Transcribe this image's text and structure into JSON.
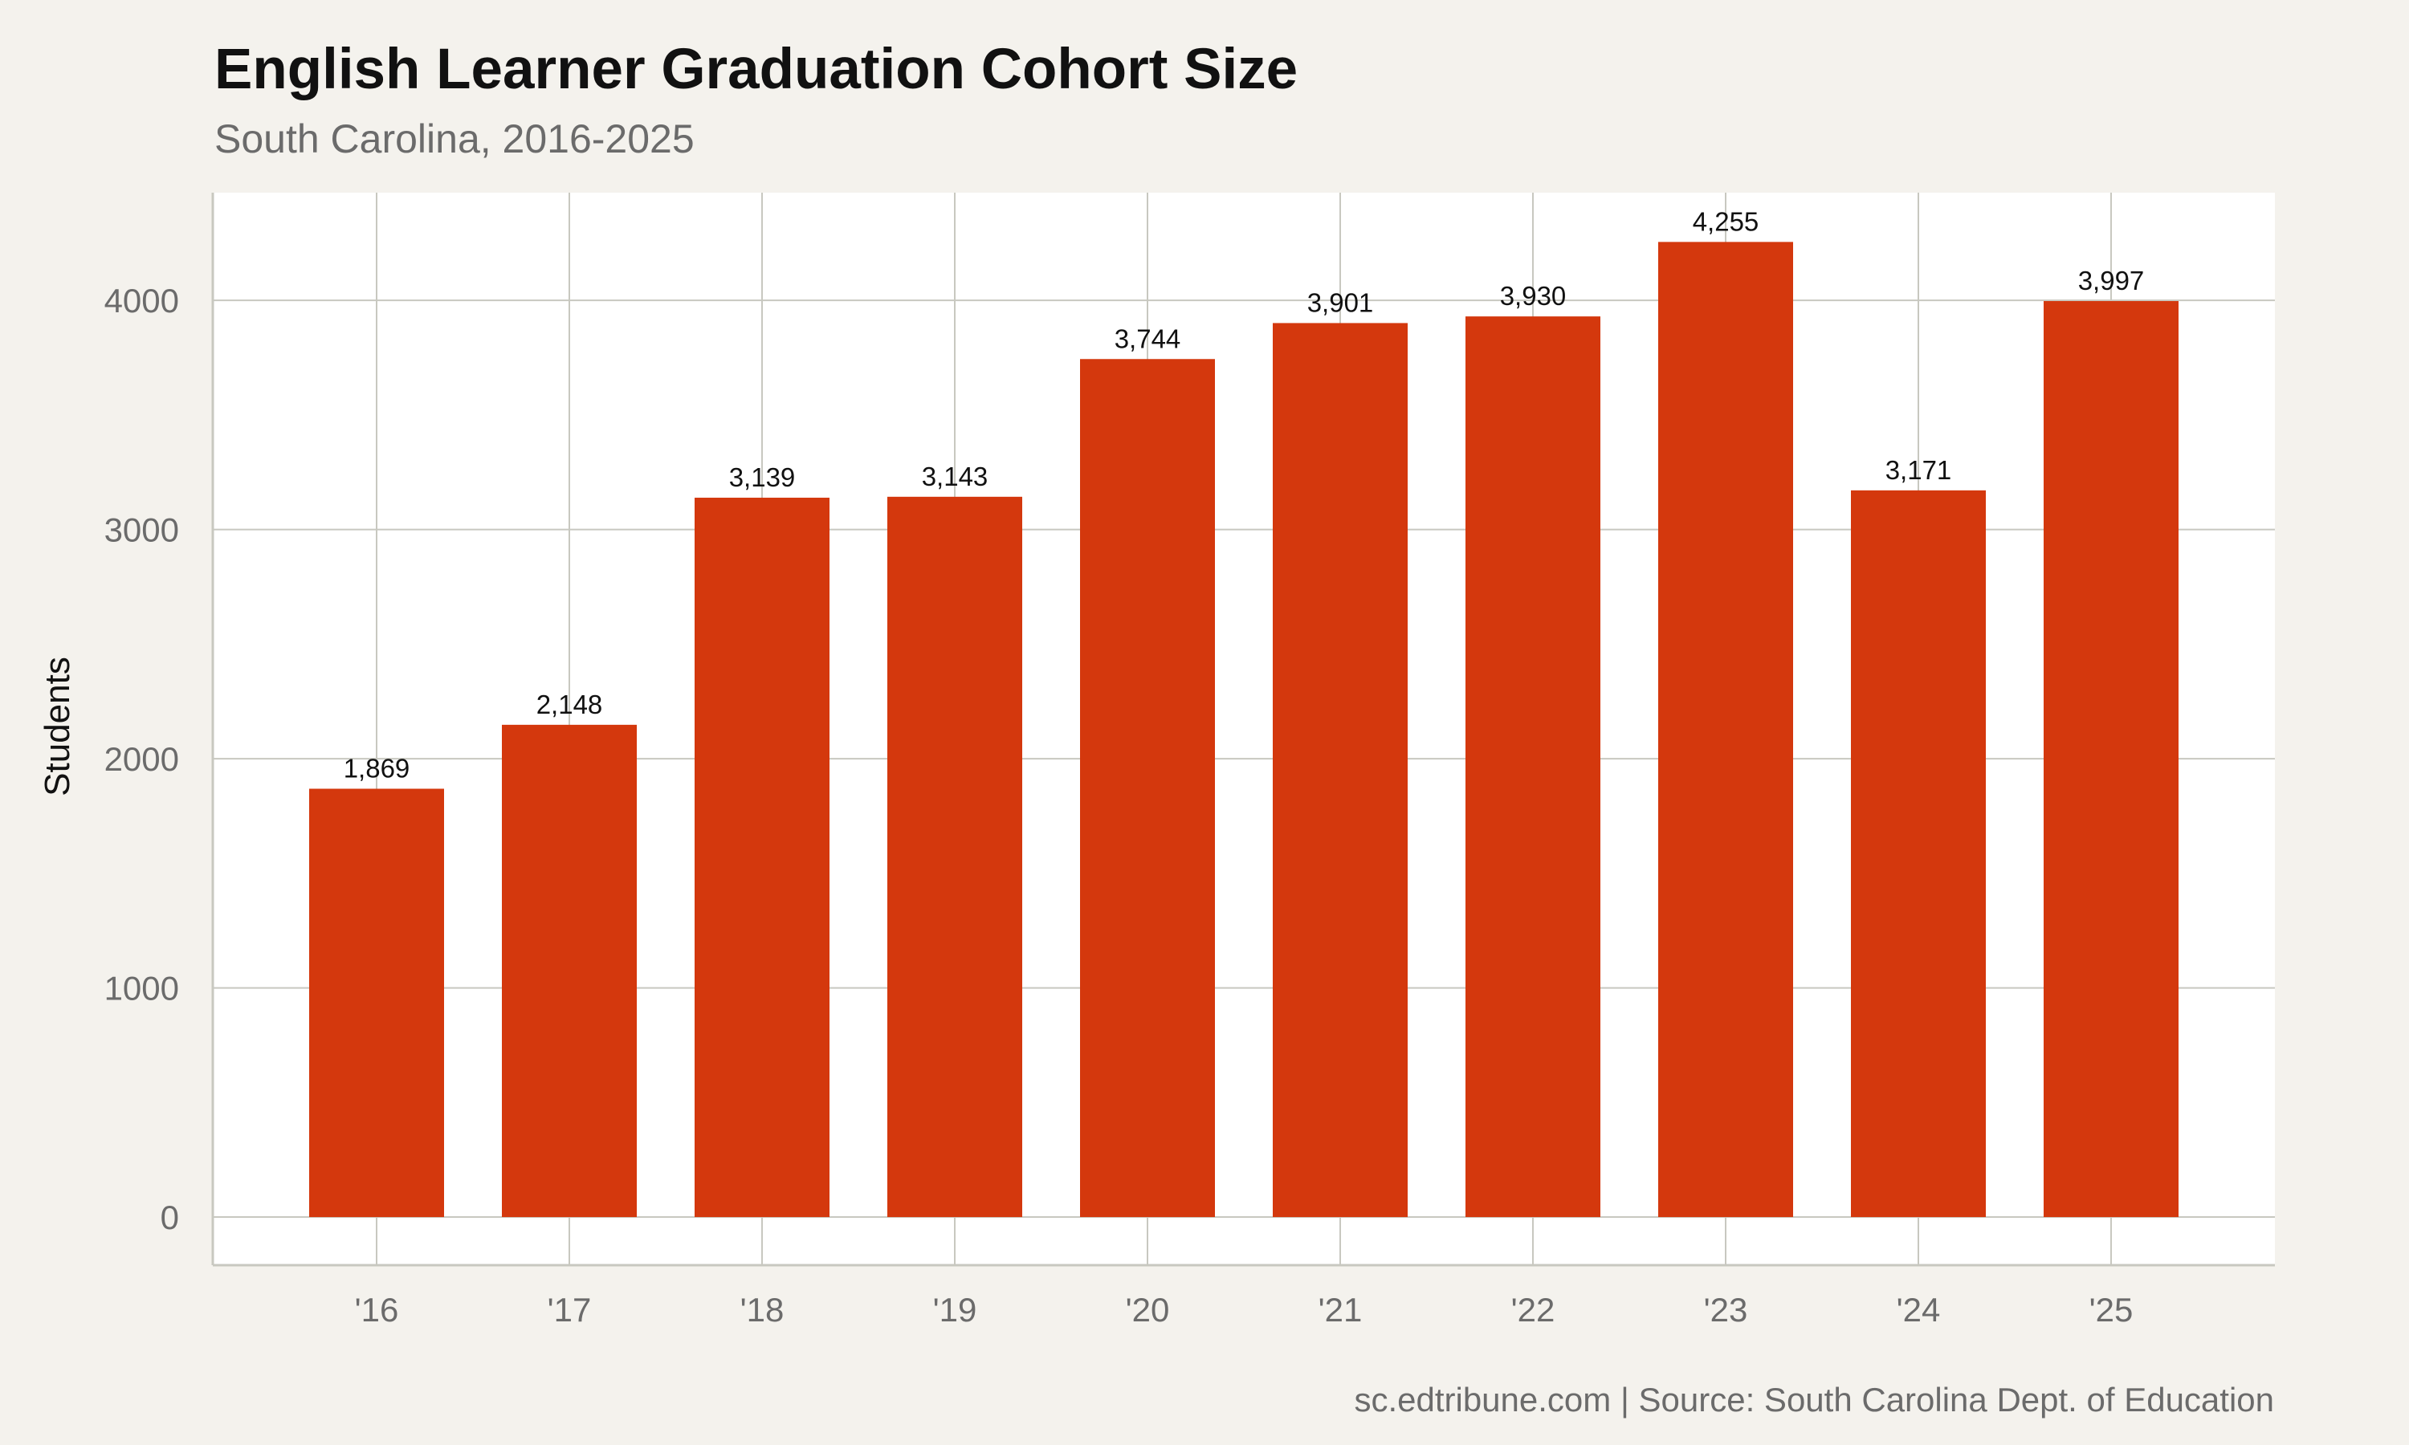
{
  "chart_data": {
    "type": "bar",
    "title": "English Learner Graduation Cohort Size",
    "subtitle": "South Carolina, 2016-2025",
    "xlabel": "",
    "ylabel": "Students",
    "categories": [
      "'16",
      "'17",
      "'18",
      "'19",
      "'20",
      "'21",
      "'22",
      "'23",
      "'24",
      "'25"
    ],
    "values": [
      1869,
      2148,
      3139,
      3143,
      3744,
      3901,
      3930,
      4255,
      3171,
      3997
    ],
    "value_labels": [
      "1,869",
      "2,148",
      "3,139",
      "3,143",
      "3,744",
      "3,901",
      "3,930",
      "4,255",
      "3,171",
      "3,997"
    ],
    "yticks": [
      0,
      1000,
      2000,
      3000,
      4000
    ],
    "ylim": [
      -210,
      4470
    ],
    "grid": true,
    "legend": "none",
    "caption": "sc.edtribune.com | Source: South Carolina Dept. of Education",
    "colors": {
      "bar": "#d4380d",
      "background": "#f4f2ed",
      "panel": "#ffffff",
      "grid": "#c8c8c0"
    }
  }
}
